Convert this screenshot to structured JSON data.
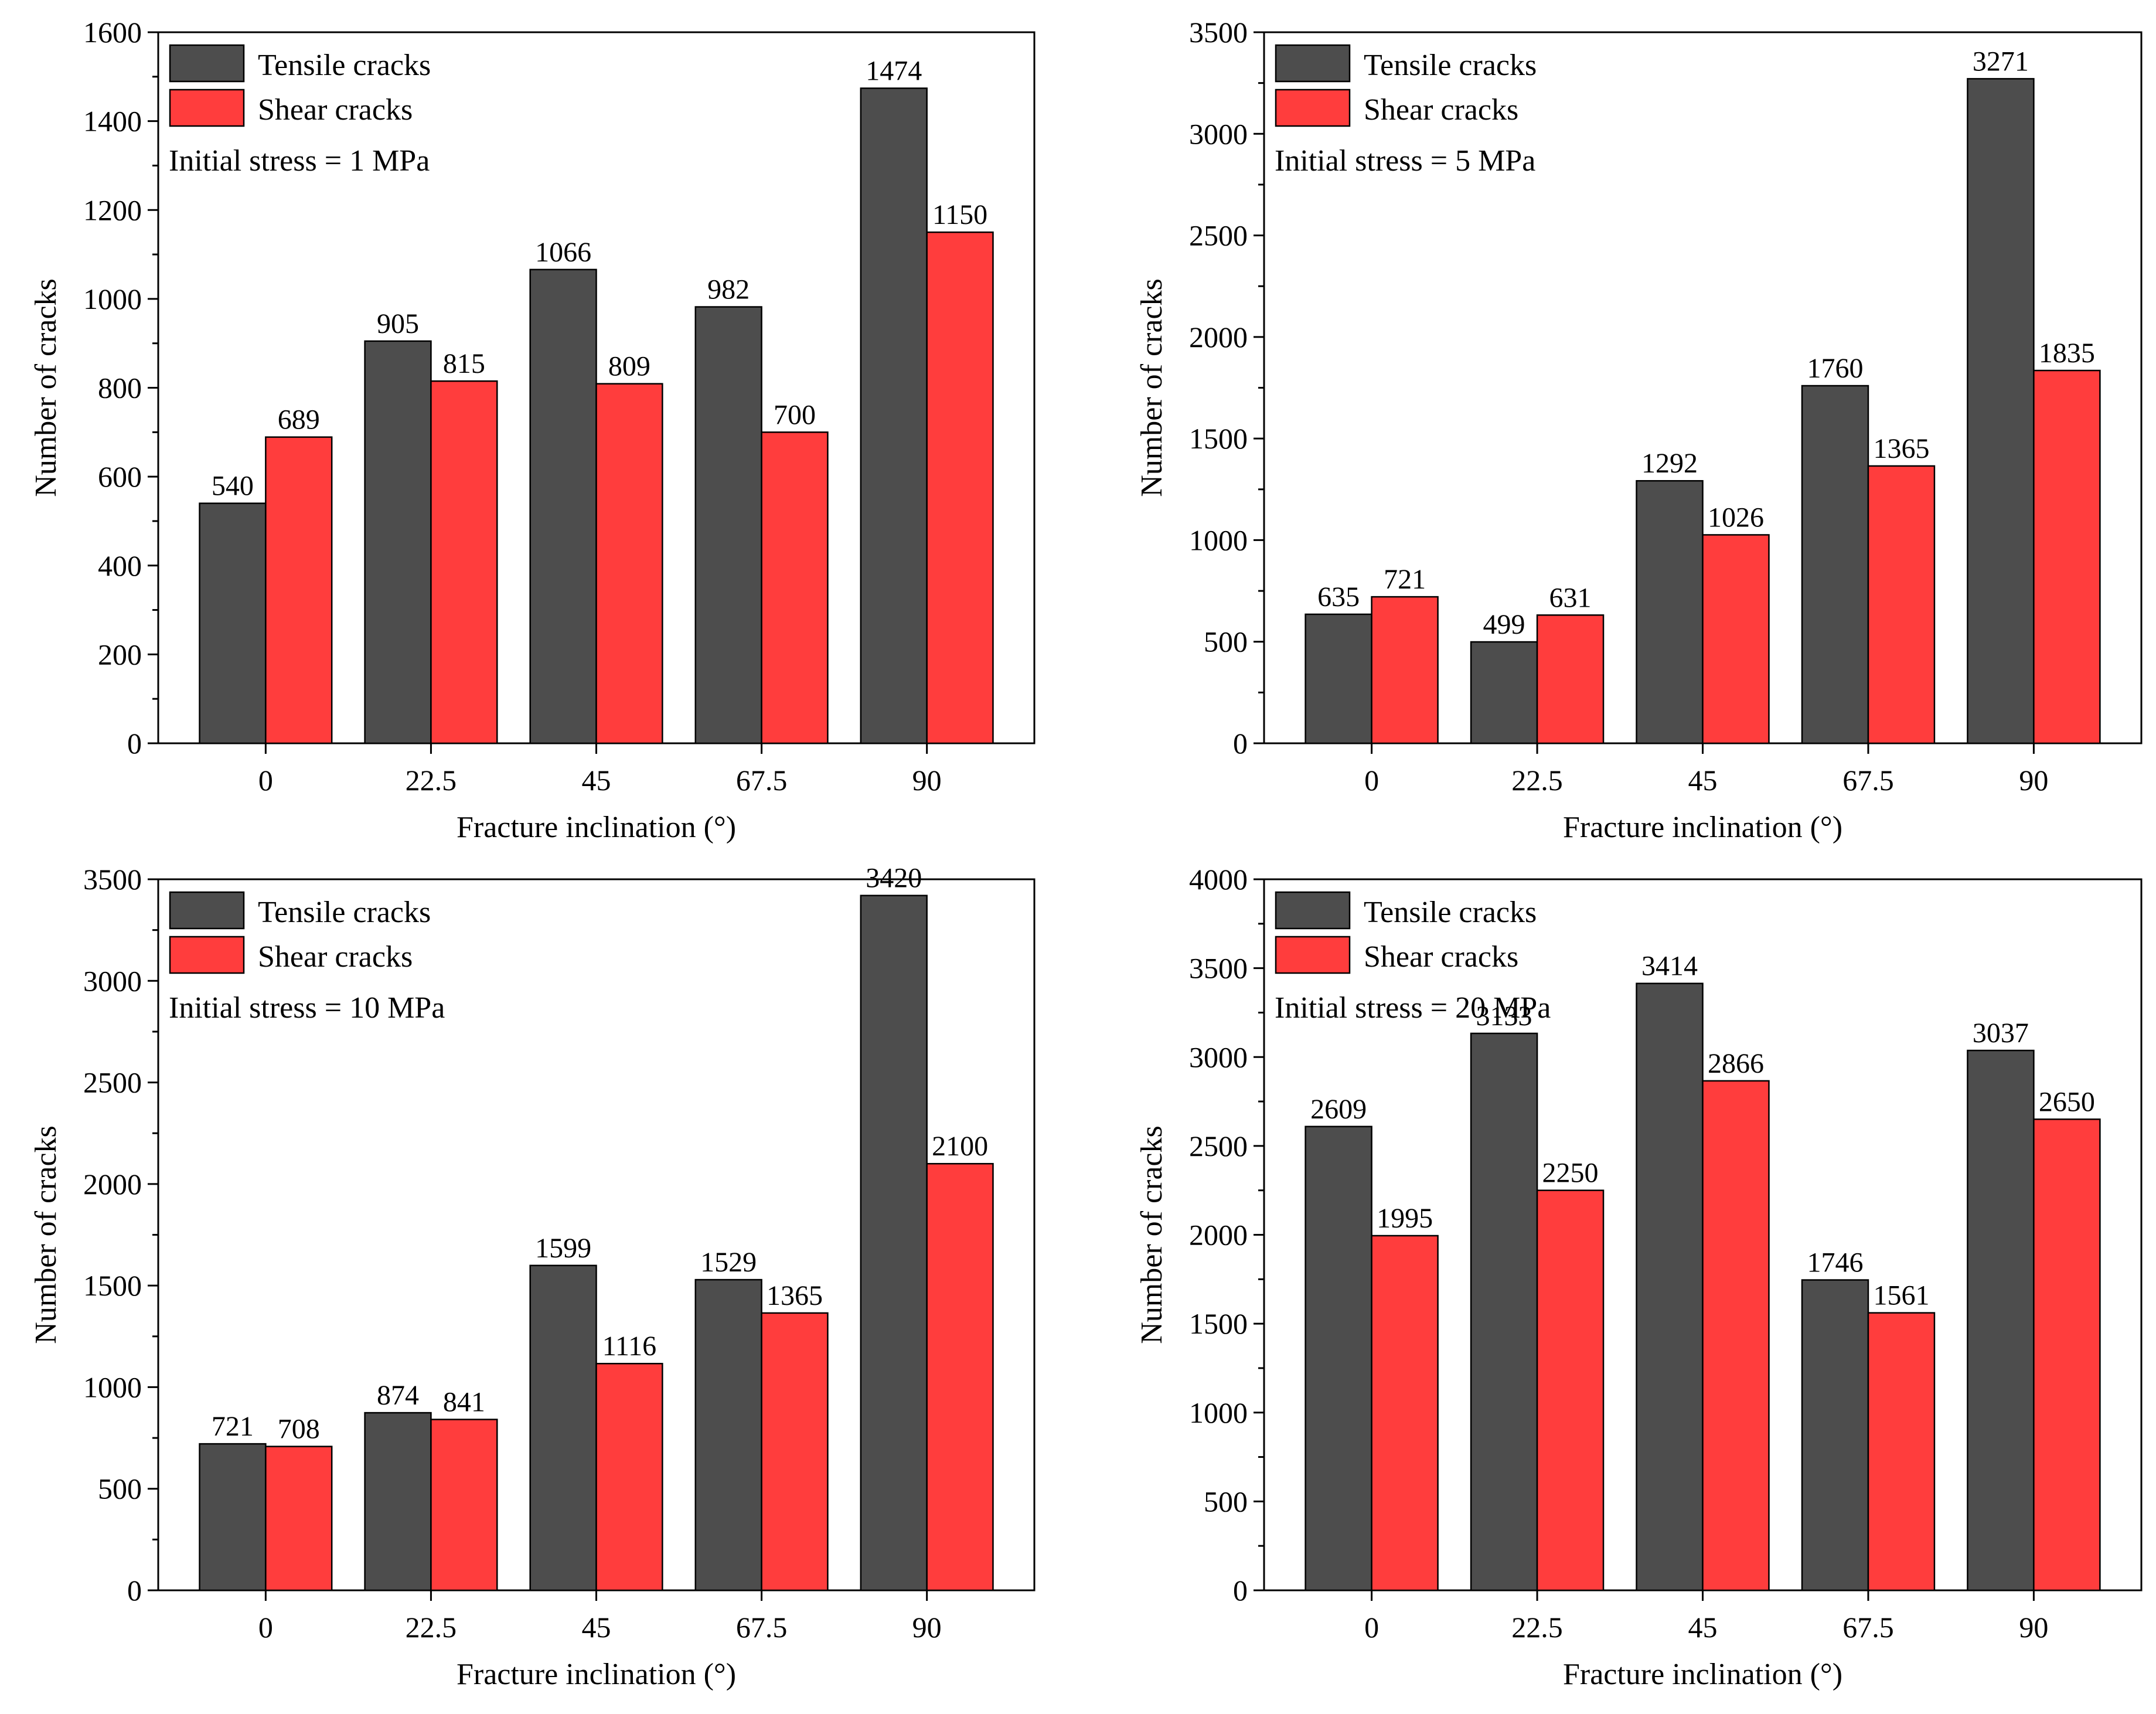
{
  "legend": {
    "tensile": "Tensile cracks",
    "shear": "Shear cracks"
  },
  "colors": {
    "tensile": "#4d4d4d",
    "shear": "#ff3d3d",
    "axis": "#000000",
    "background": "#ffffff"
  },
  "chart_data": [
    {
      "type": "bar",
      "annotation": "Initial stress = 1 MPa",
      "xlabel": "Fracture inclination (°)",
      "ylabel": "Number of cracks",
      "categories": [
        "0",
        "22.5",
        "45",
        "67.5",
        "90"
      ],
      "ylim": [
        0,
        1600
      ],
      "yticks": [
        0,
        200,
        400,
        600,
        800,
        1000,
        1200,
        1400,
        1600
      ],
      "series": [
        {
          "name": "Tensile cracks",
          "values": [
            540,
            905,
            1066,
            982,
            1474
          ]
        },
        {
          "name": "Shear cracks",
          "values": [
            689,
            815,
            809,
            700,
            1150
          ]
        }
      ]
    },
    {
      "type": "bar",
      "annotation": "Initial stress = 5 MPa",
      "xlabel": "Fracture inclination (°)",
      "ylabel": "Number of cracks",
      "categories": [
        "0",
        "22.5",
        "45",
        "67.5",
        "90"
      ],
      "ylim": [
        0,
        3500
      ],
      "yticks": [
        0,
        500,
        1000,
        1500,
        2000,
        2500,
        3000,
        3500
      ],
      "series": [
        {
          "name": "Tensile cracks",
          "values": [
            635,
            499,
            1292,
            1760,
            3271
          ]
        },
        {
          "name": "Shear cracks",
          "values": [
            721,
            631,
            1026,
            1365,
            1835
          ]
        }
      ]
    },
    {
      "type": "bar",
      "annotation": "Initial stress = 10 MPa",
      "xlabel": "Fracture inclination (°)",
      "ylabel": "Number of cracks",
      "categories": [
        "0",
        "22.5",
        "45",
        "67.5",
        "90"
      ],
      "ylim": [
        0,
        3500
      ],
      "yticks": [
        0,
        500,
        1000,
        1500,
        2000,
        2500,
        3000,
        3500
      ],
      "series": [
        {
          "name": "Tensile cracks",
          "values": [
            721,
            874,
            1599,
            1529,
            3420
          ]
        },
        {
          "name": "Shear cracks",
          "values": [
            708,
            841,
            1116,
            1365,
            2100
          ]
        }
      ]
    },
    {
      "type": "bar",
      "annotation": "Initial stress = 20 MPa",
      "xlabel": "Fracture inclination (°)",
      "ylabel": "Number of cracks",
      "categories": [
        "0",
        "22.5",
        "45",
        "67.5",
        "90"
      ],
      "ylim": [
        0,
        4000
      ],
      "yticks": [
        0,
        500,
        1000,
        1500,
        2000,
        2500,
        3000,
        3500,
        4000
      ],
      "series": [
        {
          "name": "Tensile cracks",
          "values": [
            2609,
            3133,
            3414,
            1746,
            3037
          ]
        },
        {
          "name": "Shear cracks",
          "values": [
            1995,
            2250,
            2866,
            1561,
            2650
          ]
        }
      ]
    }
  ]
}
